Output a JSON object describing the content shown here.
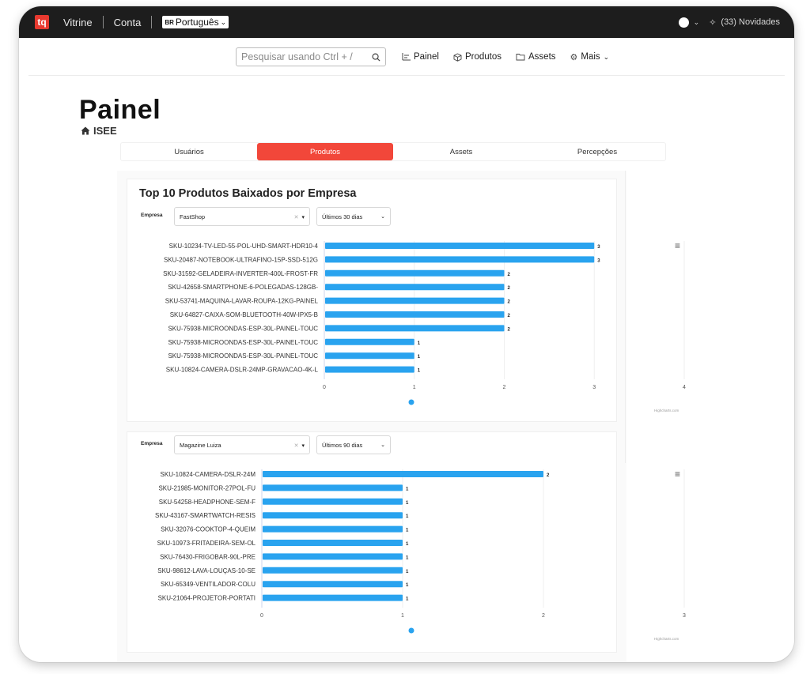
{
  "topbar": {
    "logo": "tq",
    "links": [
      "Vitrine",
      "Conta"
    ],
    "language": {
      "flag": "BR",
      "label": "Português"
    },
    "updates": "(33) Novidades"
  },
  "navbar": {
    "search_placeholder": "Pesquisar usando Ctrl + /",
    "items": [
      "Painel",
      "Produtos",
      "Assets",
      "Mais"
    ]
  },
  "page": {
    "title": "Painel",
    "breadcrumb": "ISEE"
  },
  "tabs": [
    "Usuários",
    "Produtos",
    "Assets",
    "Percepções"
  ],
  "active_tab": 1,
  "section": {
    "title": "Top 10 Produtos Baixados por Empresa"
  },
  "filter_label": "Empresa",
  "charts": [
    {
      "company": "FastShop",
      "period": "Últimos 30 dias"
    },
    {
      "company": "Magazine Luiza",
      "period": "Últimos 90 dias"
    }
  ],
  "credits": "Highcharts.com",
  "colors": {
    "bar": "#29a3ef",
    "accent": "#f2473a",
    "topbar": "#1d1d1d"
  },
  "chart_data": [
    {
      "type": "bar",
      "orientation": "horizontal",
      "categories": [
        "SKU-10234-TV-LED-55-POL-UHD-SMART-HDR10-4",
        "SKU-20487-NOTEBOOK-ULTRAFINO-15P-SSD-512G",
        "SKU-31592-GELADEIRA-INVERTER-400L-FROST-FR",
        "SKU-42658-SMARTPHONE-6-POLEGADAS-128GB-",
        "SKU-53741-MAQUINA-LAVAR-ROUPA-12KG-PAINEL",
        "SKU-64827-CAIXA-SOM-BLUETOOTH-40W-IPX5-B",
        "SKU-75938-MICROONDAS-ESP-30L-PAINEL-TOUC",
        "SKU-75938-MICROONDAS-ESP-30L-PAINEL-TOUC",
        "SKU-75938-MICROONDAS-ESP-30L-PAINEL-TOUC",
        "SKU-10824-CAMERA-DSLR-24MP-GRAVACAO-4K-L"
      ],
      "values": [
        3,
        3,
        2,
        2,
        2,
        2,
        2,
        1,
        1,
        1
      ],
      "xlim": [
        0,
        4
      ],
      "ticks": [
        0,
        1,
        2,
        3,
        4
      ],
      "data_labels": true,
      "legend": "bottom-center"
    },
    {
      "type": "bar",
      "orientation": "horizontal",
      "categories": [
        "SKU-10824-CAMERA-DSLR-24M",
        "SKU-21985-MONITOR-27POL-FU",
        "SKU-54258-HEADPHONE-SEM-F",
        "SKU-43167-SMARTWATCH-RESIS",
        "SKU-32076-COOKTOP-4-QUEIM",
        "SKU-10973-FRITADEIRA-SEM-OL",
        "SKU-76430-FRIGOBAR-90L-PRE",
        "SKU-98612-LAVA-LOUÇAS-10-SE",
        "SKU-65349-VENTILADOR-COLU",
        "SKU-21064-PROJETOR-PORTATI"
      ],
      "values": [
        2,
        1,
        1,
        1,
        1,
        1,
        1,
        1,
        1,
        1
      ],
      "xlim": [
        0,
        3
      ],
      "ticks": [
        0,
        1,
        2,
        3
      ],
      "data_labels": true,
      "legend": "bottom-center"
    }
  ]
}
